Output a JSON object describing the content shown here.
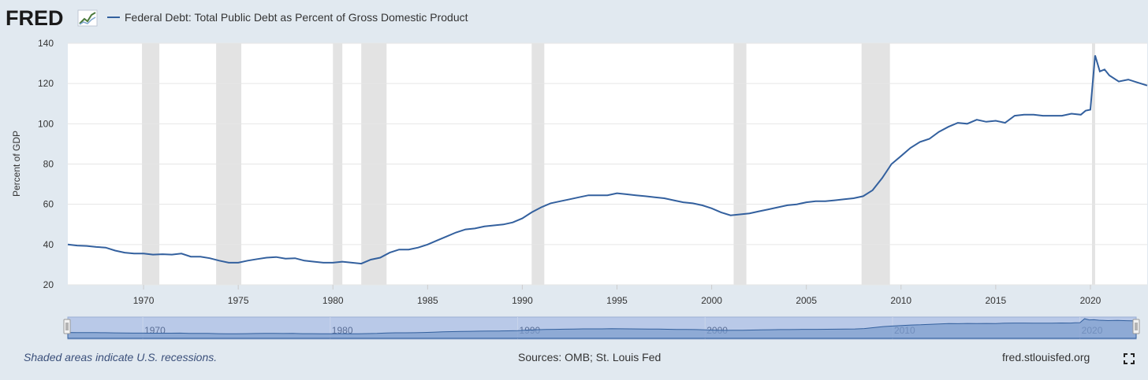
{
  "header": {
    "logo_text": "FRED",
    "legend_label": "Federal Debt: Total Public Debt as Percent of Gross Domestic Product"
  },
  "footer": {
    "recession_note": "Shaded areas indicate U.S. recessions.",
    "sources": "Sources: OMB; St. Louis Fed",
    "site": "fred.stlouisfed.org"
  },
  "colors": {
    "series": "#33609e",
    "background": "#e1e9f0",
    "plot_background": "#ffffff",
    "recession_shade": "#e3e3e3",
    "navigator_fill": "#b9c9e8"
  },
  "icons": {
    "logo_graph": "line-graph-icon",
    "fullscreen": "fullscreen-icon"
  },
  "chart_data": {
    "type": "line",
    "title": "",
    "xlabel": "",
    "ylabel": "Percent of GDP",
    "xlim": [
      "1966-01-01",
      "2023-01-01"
    ],
    "ylim": [
      20,
      140
    ],
    "yticks": [
      20,
      40,
      60,
      80,
      100,
      120,
      140
    ],
    "xticks": [
      "1970",
      "1975",
      "1980",
      "1985",
      "1990",
      "1995",
      "2000",
      "2005",
      "2010",
      "2015",
      "2020"
    ],
    "navigator_ticks": [
      "1970",
      "1980",
      "1990",
      "2000",
      "2010",
      "2020"
    ],
    "grid": true,
    "legend": "top-left",
    "recessions": [
      [
        "1969-12-01",
        "1970-11-01"
      ],
      [
        "1973-11-01",
        "1975-03-01"
      ],
      [
        "1980-01-01",
        "1980-07-01"
      ],
      [
        "1981-07-01",
        "1982-11-01"
      ],
      [
        "1990-07-01",
        "1991-03-01"
      ],
      [
        "2001-03-01",
        "2001-11-01"
      ],
      [
        "2007-12-01",
        "2009-06-01"
      ],
      [
        "2020-02-01",
        "2020-04-01"
      ]
    ],
    "series": [
      {
        "name": "Federal Debt: Total Public Debt as Percent of Gross Domestic Product",
        "x": [
          "1966-01-01",
          "1966-07-01",
          "1967-01-01",
          "1967-07-01",
          "1968-01-01",
          "1968-07-01",
          "1969-01-01",
          "1969-07-01",
          "1970-01-01",
          "1970-07-01",
          "1971-01-01",
          "1971-07-01",
          "1972-01-01",
          "1972-07-01",
          "1973-01-01",
          "1973-07-01",
          "1974-01-01",
          "1974-07-01",
          "1975-01-01",
          "1975-07-01",
          "1976-01-01",
          "1976-07-01",
          "1977-01-01",
          "1977-07-01",
          "1978-01-01",
          "1978-07-01",
          "1979-01-01",
          "1979-07-01",
          "1980-01-01",
          "1980-07-01",
          "1981-01-01",
          "1981-07-01",
          "1982-01-01",
          "1982-07-01",
          "1983-01-01",
          "1983-07-01",
          "1984-01-01",
          "1984-07-01",
          "1985-01-01",
          "1985-07-01",
          "1986-01-01",
          "1986-07-01",
          "1987-01-01",
          "1987-07-01",
          "1988-01-01",
          "1988-07-01",
          "1989-01-01",
          "1989-07-01",
          "1990-01-01",
          "1990-07-01",
          "1991-01-01",
          "1991-07-01",
          "1992-01-01",
          "1992-07-01",
          "1993-01-01",
          "1993-07-01",
          "1994-01-01",
          "1994-07-01",
          "1995-01-01",
          "1995-07-01",
          "1996-01-01",
          "1996-07-01",
          "1997-01-01",
          "1997-07-01",
          "1998-01-01",
          "1998-07-01",
          "1999-01-01",
          "1999-07-01",
          "2000-01-01",
          "2000-07-01",
          "2001-01-01",
          "2001-07-01",
          "2002-01-01",
          "2002-07-01",
          "2003-01-01",
          "2003-07-01",
          "2004-01-01",
          "2004-07-01",
          "2005-01-01",
          "2005-07-01",
          "2006-01-01",
          "2006-07-01",
          "2007-01-01",
          "2007-07-01",
          "2008-01-01",
          "2008-07-01",
          "2009-01-01",
          "2009-07-01",
          "2010-01-01",
          "2010-07-01",
          "2011-01-01",
          "2011-07-01",
          "2012-01-01",
          "2012-07-01",
          "2013-01-01",
          "2013-07-01",
          "2014-01-01",
          "2014-07-01",
          "2015-01-01",
          "2015-07-01",
          "2016-01-01",
          "2016-07-01",
          "2017-01-01",
          "2017-07-01",
          "2018-01-01",
          "2018-07-01",
          "2019-01-01",
          "2019-07-01",
          "2019-10-01",
          "2020-01-01",
          "2020-04-01",
          "2020-07-01",
          "2020-10-01",
          "2021-01-01",
          "2021-07-01",
          "2022-01-01",
          "2022-07-01",
          "2023-01-01"
        ],
        "values": [
          40.0,
          39.5,
          39.3,
          38.8,
          38.5,
          37.0,
          36.0,
          35.5,
          35.5,
          35.0,
          35.2,
          35.0,
          35.5,
          34.0,
          34.0,
          33.2,
          32.0,
          31.0,
          31.0,
          32.0,
          32.8,
          33.5,
          33.8,
          33.0,
          33.2,
          32.0,
          31.5,
          31.0,
          31.0,
          31.5,
          31.0,
          30.5,
          32.5,
          33.5,
          36.0,
          37.5,
          37.5,
          38.5,
          40.0,
          42.0,
          44.0,
          46.0,
          47.5,
          48.0,
          49.0,
          49.5,
          50.0,
          51.0,
          53.0,
          56.0,
          58.5,
          60.5,
          61.5,
          62.5,
          63.5,
          64.5,
          64.5,
          64.5,
          65.5,
          65.0,
          64.5,
          64.0,
          63.5,
          63.0,
          62.0,
          61.0,
          60.5,
          59.5,
          58.0,
          56.0,
          54.5,
          55.0,
          55.5,
          56.5,
          57.5,
          58.5,
          59.5,
          60.0,
          61.0,
          61.5,
          61.5,
          62.0,
          62.5,
          63.0,
          64.0,
          67.0,
          73.0,
          80.0,
          84.0,
          88.0,
          91.0,
          92.5,
          96.0,
          98.5,
          100.5,
          100.0,
          102.0,
          101.0,
          101.5,
          100.5,
          104.0,
          104.5,
          104.5,
          104.0,
          104.0,
          104.0,
          105.0,
          104.5,
          106.5,
          107.0,
          134.0,
          126.0,
          127.0,
          124.0,
          121.0,
          122.0,
          120.5,
          119.0
        ]
      }
    ]
  }
}
